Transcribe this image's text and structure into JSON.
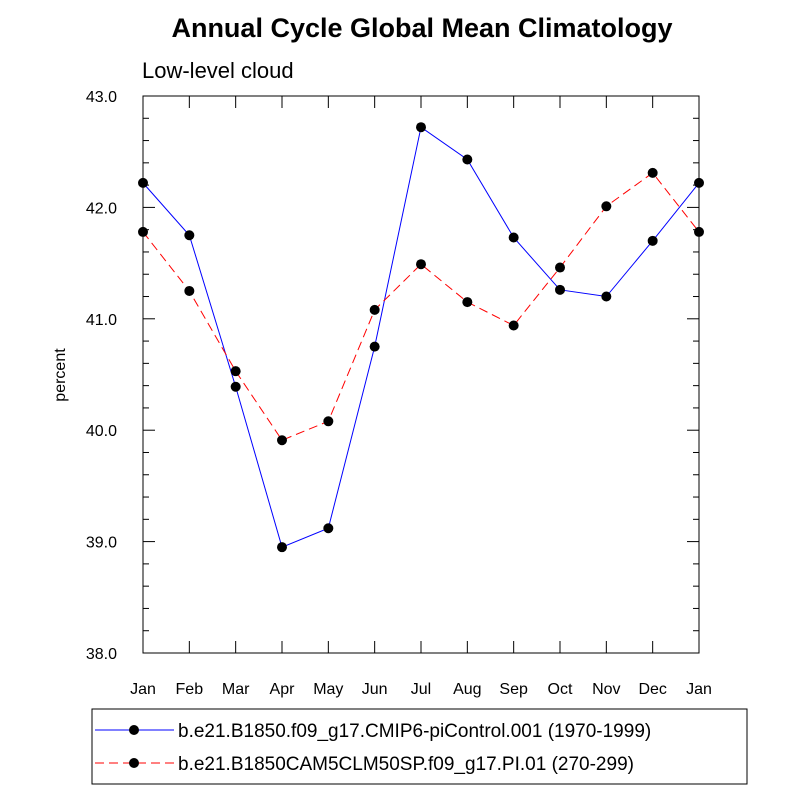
{
  "chart_data": {
    "type": "line",
    "title": "Annual Cycle Global Mean Climatology",
    "subtitle": "Low-level cloud",
    "xlabel": "",
    "ylabel": "percent",
    "ylim": [
      38.0,
      43.0
    ],
    "y_ticks": [
      "38.0",
      "39.0",
      "40.0",
      "41.0",
      "42.0",
      "43.0"
    ],
    "categories": [
      "Jan",
      "Feb",
      "Mar",
      "Apr",
      "May",
      "Jun",
      "Jul",
      "Aug",
      "Sep",
      "Oct",
      "Nov",
      "Dec",
      "Jan"
    ],
    "grid": false,
    "legend_position": "bottom",
    "series": [
      {
        "name": "b.e21.B1850.f09_g17.CMIP6-piControl.001 (1970-1999)",
        "color": "#0000ff",
        "dash": "solid",
        "values": [
          42.22,
          41.75,
          40.39,
          38.95,
          39.12,
          40.75,
          42.72,
          42.43,
          41.73,
          41.26,
          41.2,
          41.7,
          42.22
        ]
      },
      {
        "name": "b.e21.B1850CAM5CLM50SP.f09_g17.PI.01 (270-299)",
        "color": "#ff0000",
        "dash": "dashed",
        "values": [
          41.78,
          41.25,
          40.53,
          39.91,
          40.08,
          41.08,
          41.49,
          41.15,
          40.94,
          41.46,
          42.01,
          42.31,
          41.78
        ]
      }
    ]
  }
}
